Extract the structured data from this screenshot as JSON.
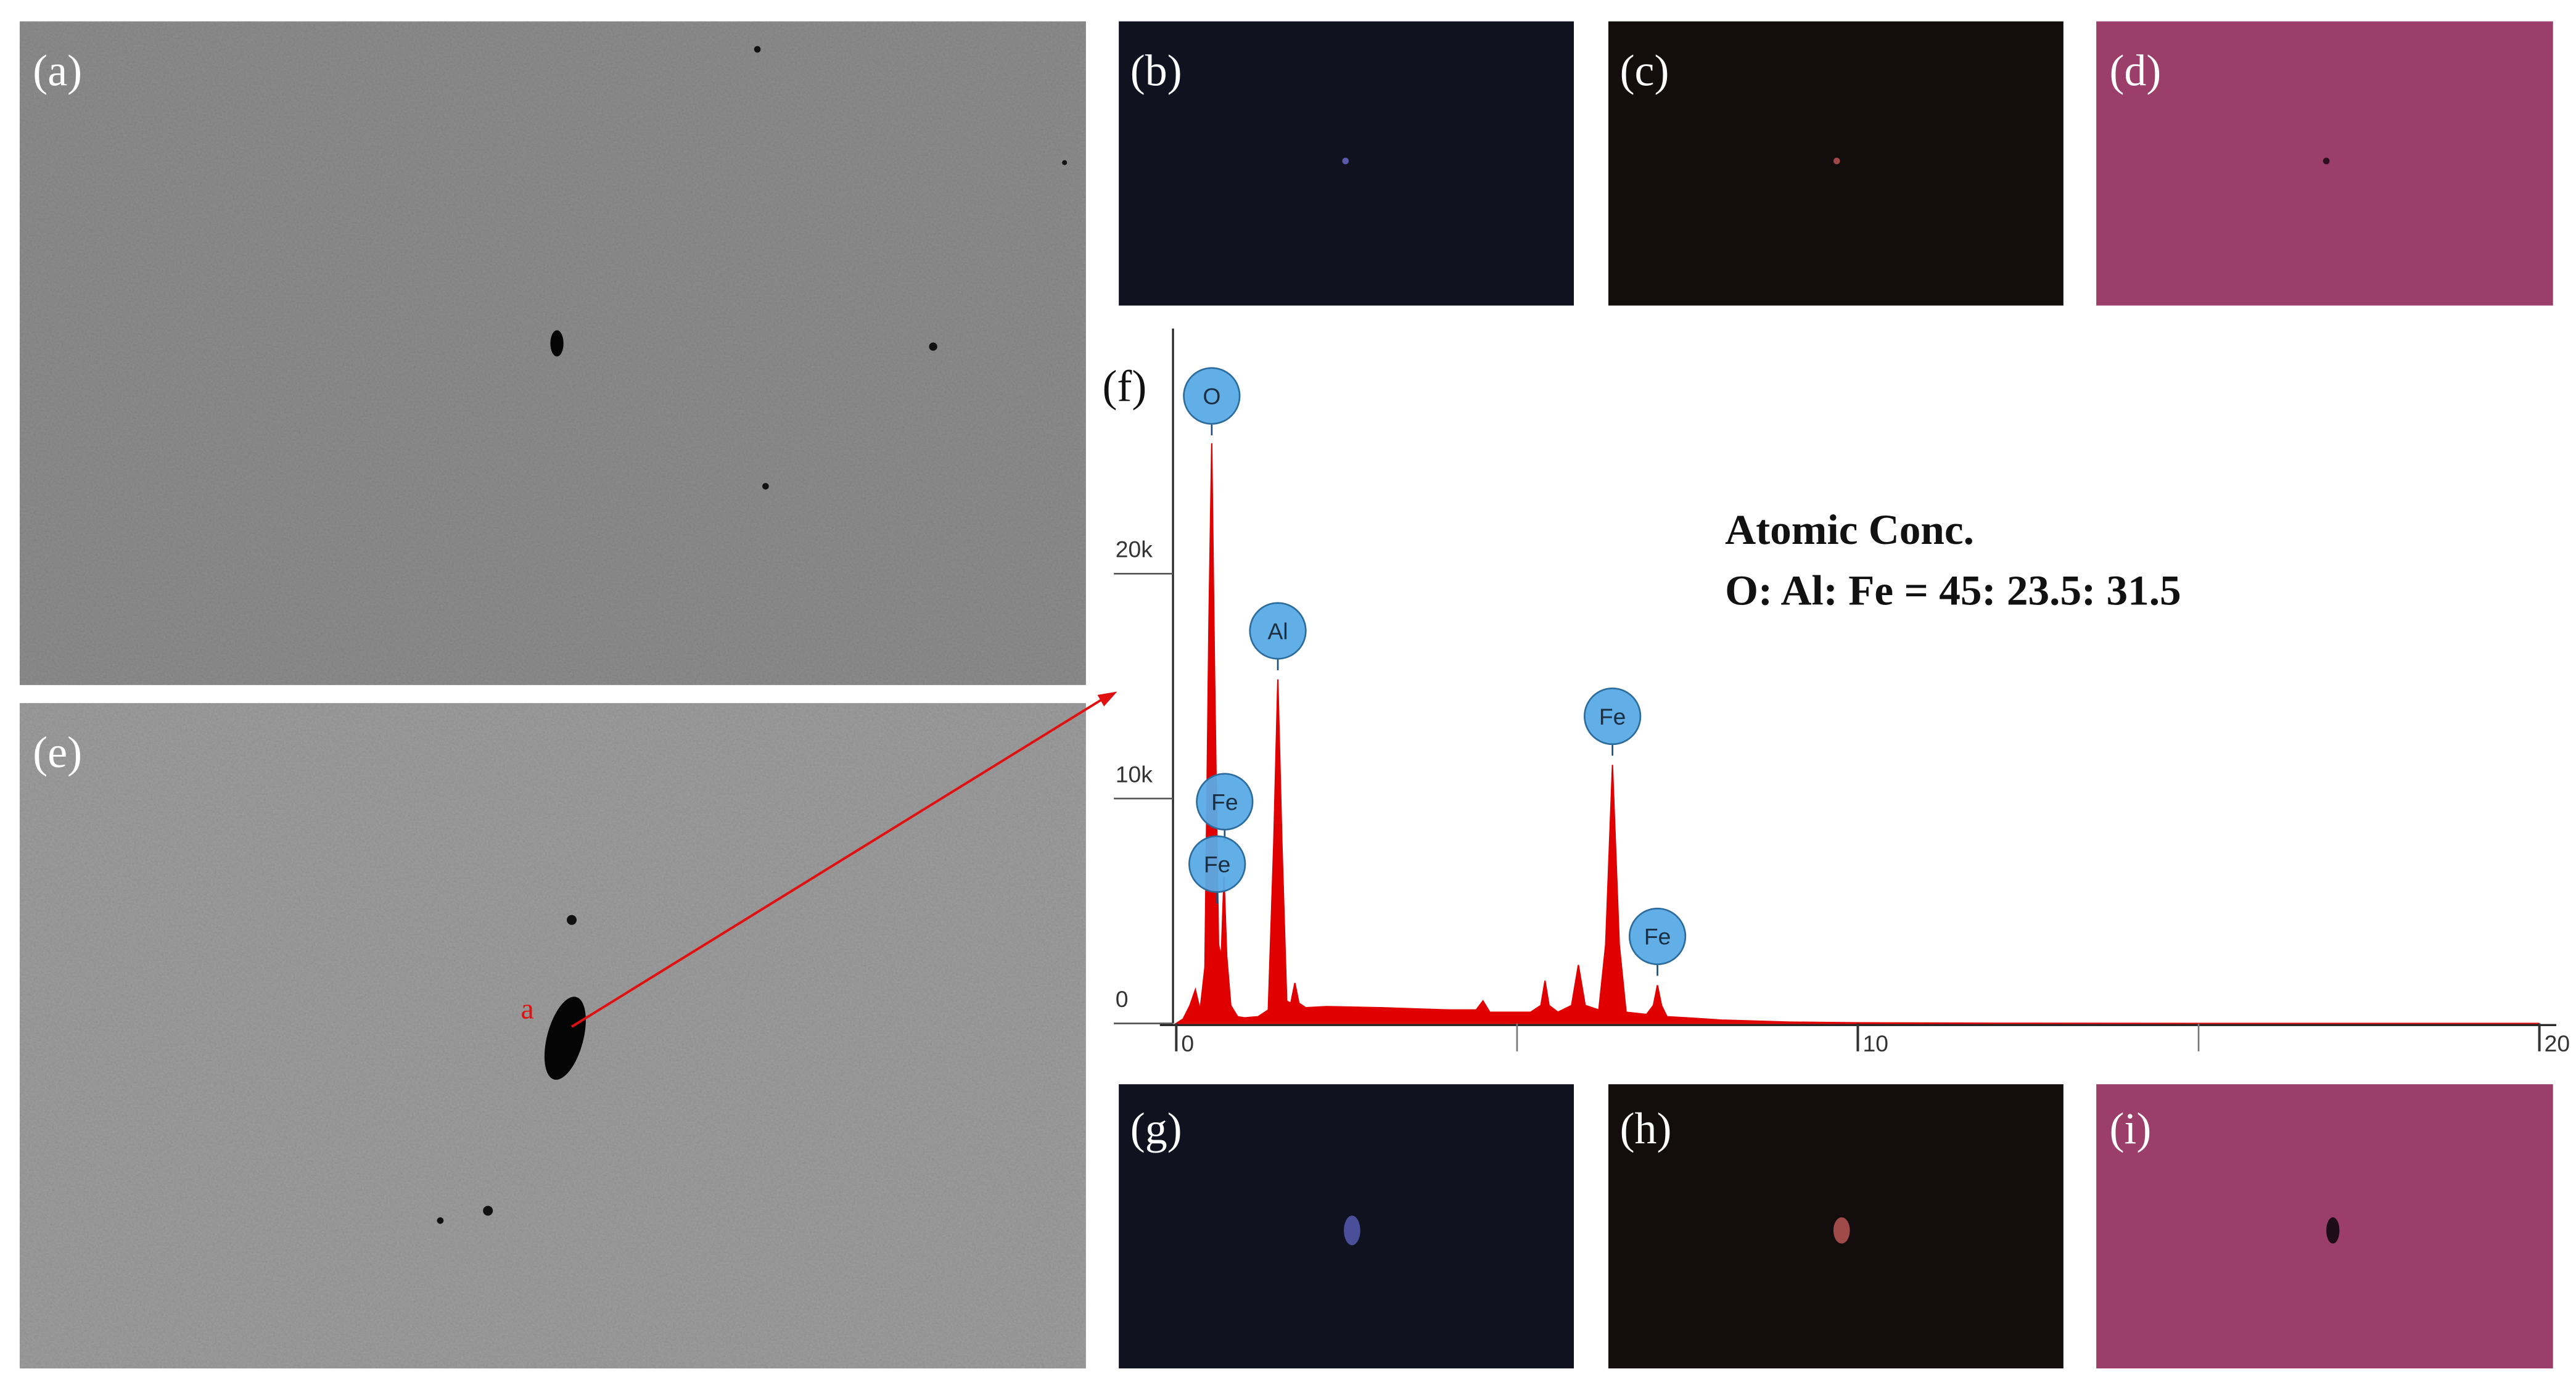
{
  "panel_labels": [
    "(a)",
    "(b)",
    "(c)",
    "(d)",
    "(e)",
    "(f)",
    "(g)",
    "(h)",
    "(i)"
  ],
  "marker_label": "a",
  "chart_data": {
    "type": "area",
    "annotations": [
      "Atomic  Conc.",
      "O: Al: Fe = 45: 23.5: 31.5"
    ],
    "color": "#e00000",
    "x": [
      0,
      0.1,
      0.2,
      0.28,
      0.35,
      0.42,
      0.48,
      0.52,
      0.56,
      0.62,
      0.66,
      0.7,
      0.74,
      0.8,
      0.9,
      1.0,
      1.2,
      1.35,
      1.43,
      1.49,
      1.55,
      1.62,
      1.68,
      1.74,
      1.8,
      1.9,
      2.2,
      3,
      4,
      4.4,
      4.5,
      4.6,
      5.2,
      5.35,
      5.41,
      5.47,
      5.6,
      5.8,
      5.9,
      6.0,
      6.2,
      6.3,
      6.4,
      6.5,
      6.6,
      6.9,
      7.0,
      7.06,
      7.12,
      7.2,
      7.5,
      8.0,
      9,
      10,
      12,
      15,
      20
    ],
    "values": [
      0,
      200,
      800,
      1500,
      600,
      2500,
      18000,
      25800,
      16000,
      3500,
      3000,
      6500,
      3000,
      800,
      300,
      250,
      300,
      600,
      8000,
      15300,
      8000,
      1000,
      900,
      1800,
      900,
      700,
      750,
      700,
      600,
      600,
      1000,
      500,
      500,
      800,
      1900,
      800,
      500,
      800,
      2600,
      800,
      600,
      3500,
      11500,
      3500,
      500,
      400,
      800,
      1700,
      800,
      300,
      250,
      150,
      60,
      30,
      10,
      0,
      0
    ],
    "peak_labels": [
      {
        "label": "O",
        "energy": 0.52
      },
      {
        "label": "Al",
        "energy": 1.49
      },
      {
        "label": "Fe",
        "energy": 0.71
      },
      {
        "label": "Fe",
        "energy": 0.6
      },
      {
        "label": "Fe",
        "energy": 6.4
      },
      {
        "label": "Fe",
        "energy": 7.06
      }
    ],
    "xlim": [
      0,
      20.2
    ],
    "xticks": [
      0,
      10,
      20
    ],
    "xminor_ticks": [
      5,
      15
    ],
    "ylim": [
      0,
      30900
    ],
    "yticks": [
      0,
      {
        "value": 10000,
        "label": "10k"
      },
      {
        "value": 20000,
        "label": "20k"
      }
    ]
  }
}
